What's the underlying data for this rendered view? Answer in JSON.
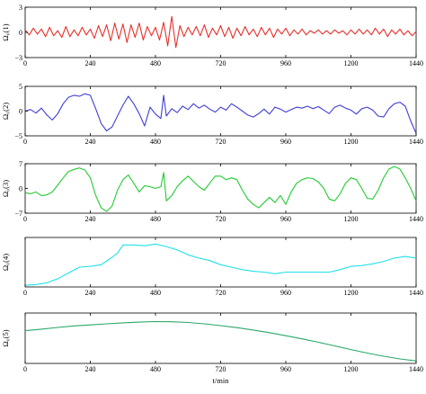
{
  "chart_data": [
    {
      "type": "line",
      "ylabel": "Ω₀(1)",
      "ylim": [
        -3,
        3
      ],
      "yticks": [
        "3",
        "0",
        "−3"
      ],
      "xlim": [
        0,
        1440
      ],
      "xticks": [
        "0",
        "240",
        "480",
        "720",
        "960",
        "1200",
        "1440"
      ],
      "color": "#e8302a",
      "x": [
        0,
        15,
        30,
        45,
        60,
        75,
        90,
        105,
        120,
        135,
        150,
        165,
        180,
        195,
        210,
        225,
        240,
        255,
        270,
        285,
        300,
        315,
        330,
        345,
        360,
        375,
        390,
        405,
        420,
        435,
        450,
        465,
        480,
        495,
        510,
        525,
        540,
        555,
        570,
        585,
        600,
        615,
        630,
        645,
        660,
        675,
        690,
        705,
        720,
        735,
        750,
        765,
        780,
        795,
        810,
        825,
        840,
        855,
        870,
        885,
        900,
        915,
        930,
        945,
        960,
        975,
        990,
        1005,
        1020,
        1035,
        1050,
        1065,
        1080,
        1095,
        1110,
        1125,
        1140,
        1155,
        1170,
        1185,
        1200,
        1215,
        1230,
        1245,
        1260,
        1275,
        1290,
        1305,
        1320,
        1335,
        1350,
        1365,
        1380,
        1395,
        1410,
        1425,
        1440
      ],
      "values": [
        0.3,
        -0.3,
        0.5,
        -0.2,
        0.4,
        -0.5,
        0.6,
        -0.4,
        0.2,
        -0.6,
        0.7,
        -0.5,
        0.3,
        -0.4,
        0.6,
        -0.3,
        0.4,
        -0.7,
        0.8,
        -0.5,
        0.9,
        -1.0,
        1.1,
        -0.8,
        1.0,
        -1.2,
        0.9,
        -0.6,
        1.1,
        -0.9,
        0.7,
        -0.4,
        0.6,
        -0.9,
        1.2,
        -1.6,
        1.9,
        -1.8,
        0.8,
        -0.5,
        0.6,
        -0.3,
        0.7,
        -0.4,
        0.9,
        -0.6,
        0.5,
        -0.3,
        0.8,
        -0.5,
        0.6,
        -0.7,
        0.5,
        -0.4,
        0.7,
        -0.3,
        0.4,
        -0.5,
        0.6,
        -0.3,
        0.5,
        -0.6,
        0.4,
        -0.2,
        0.5,
        -0.4,
        0.3,
        -0.2,
        0.4,
        -0.3,
        0.2,
        -0.1,
        0.3,
        -0.2,
        0.2,
        -0.2,
        0.3,
        -0.1,
        0.2,
        -0.3,
        0.3,
        -0.2,
        0.4,
        -0.2,
        0.3,
        -0.3,
        0.5,
        -0.2,
        0.4,
        -0.5,
        0.3,
        -0.2,
        0.4,
        -0.3,
        0.2,
        -0.4,
        0.1
      ]
    },
    {
      "type": "line",
      "ylabel": "Ω₀(2)",
      "ylim": [
        -5,
        5
      ],
      "yticks": [
        "5",
        "0",
        "−5"
      ],
      "xlim": [
        0,
        1440
      ],
      "xticks": [
        "0",
        "240",
        "480",
        "720",
        "960",
        "1200",
        "1440"
      ],
      "color": "#3f3fd6",
      "x": [
        0,
        20,
        40,
        60,
        80,
        100,
        120,
        140,
        160,
        180,
        200,
        220,
        240,
        260,
        280,
        300,
        320,
        340,
        360,
        380,
        400,
        420,
        440,
        460,
        480,
        500,
        510,
        520,
        540,
        560,
        580,
        600,
        620,
        640,
        660,
        680,
        700,
        720,
        740,
        760,
        780,
        800,
        820,
        840,
        860,
        880,
        900,
        920,
        940,
        960,
        980,
        1000,
        1020,
        1040,
        1060,
        1080,
        1100,
        1120,
        1140,
        1160,
        1180,
        1200,
        1220,
        1240,
        1260,
        1280,
        1300,
        1320,
        1340,
        1360,
        1380,
        1400,
        1420,
        1440
      ],
      "values": [
        0,
        0.3,
        -0.4,
        0.6,
        -0.8,
        -1.8,
        -0.5,
        1.5,
        2.8,
        3.2,
        3.0,
        3.5,
        3.2,
        0.5,
        -2.5,
        -4.0,
        -3.2,
        -1.0,
        1.2,
        3.0,
        1.5,
        -0.5,
        -3.0,
        0.8,
        -0.6,
        -1.5,
        3.2,
        -1.0,
        0.5,
        -0.3,
        1.0,
        0.3,
        1.5,
        0.6,
        1.2,
        0.4,
        -0.2,
        0.8,
        0.2,
        1.5,
        0.8,
        0,
        -0.8,
        -1.2,
        -0.5,
        0.4,
        -0.6,
        0.8,
        0.4,
        -0.2,
        0.3,
        0.8,
        0.6,
        1.0,
        0.5,
        0.9,
        0.2,
        -0.5,
        0.8,
        1.2,
        0.6,
        0.2,
        -0.6,
        0.5,
        0.8,
        0.2,
        -1.0,
        -1.2,
        0.5,
        1.5,
        1.8,
        1.0,
        -2.0,
        -4.5
      ]
    },
    {
      "type": "line",
      "ylabel": "Ω₀(3)",
      "ylim": [
        -7,
        7
      ],
      "yticks": [
        "7",
        "0",
        "−7"
      ],
      "xlim": [
        0,
        1440
      ],
      "xticks": [
        "0",
        "240",
        "480",
        "720",
        "960",
        "1200",
        "1440"
      ],
      "color": "#22cc33",
      "x": [
        0,
        20,
        40,
        60,
        80,
        100,
        120,
        140,
        160,
        180,
        200,
        220,
        240,
        260,
        280,
        300,
        320,
        340,
        360,
        380,
        400,
        420,
        440,
        460,
        480,
        500,
        510,
        520,
        540,
        560,
        580,
        600,
        620,
        640,
        660,
        680,
        700,
        720,
        740,
        760,
        780,
        800,
        820,
        840,
        860,
        880,
        900,
        920,
        940,
        960,
        980,
        1000,
        1020,
        1040,
        1060,
        1080,
        1100,
        1120,
        1140,
        1160,
        1180,
        1200,
        1220,
        1240,
        1260,
        1280,
        1300,
        1320,
        1340,
        1360,
        1380,
        1400,
        1420,
        1440
      ],
      "values": [
        -1.2,
        -1.5,
        -1.0,
        -2.0,
        -1.8,
        -1.0,
        1.0,
        3.0,
        4.8,
        5.4,
        5.8,
        5.2,
        3.0,
        -2.0,
        -5.5,
        -6.5,
        -5.0,
        -0.5,
        2.5,
        3.8,
        1.5,
        -1.0,
        0.8,
        0.5,
        0,
        0.5,
        4.5,
        -3.5,
        -2.0,
        0.5,
        2.2,
        3.5,
        2.0,
        0.5,
        -0.5,
        1.5,
        3.5,
        3.5,
        2.5,
        3.0,
        2.5,
        -0.5,
        -3.0,
        -4.5,
        -5.5,
        -4.0,
        -2.5,
        -4.0,
        -2.0,
        -4.5,
        -1.0,
        1.5,
        2.5,
        3.0,
        2.8,
        1.8,
        0,
        -3.0,
        -3.5,
        -1.5,
        1.5,
        3.0,
        2.5,
        0,
        -2.8,
        -3.0,
        -0.5,
        3.0,
        5.5,
        6.2,
        5.5,
        3.0,
        0,
        -3.5
      ]
    },
    {
      "type": "line",
      "ylabel": "Ω₀(4)",
      "ylim": [
        -30,
        30
      ],
      "yticks": [],
      "xlim": [
        0,
        1440
      ],
      "xticks": [
        "0",
        "240",
        "480",
        "720",
        "960",
        "1200",
        "1440"
      ],
      "color": "#22e0ea",
      "x": [
        0,
        40,
        80,
        120,
        160,
        200,
        240,
        280,
        320,
        340,
        360,
        400,
        440,
        480,
        520,
        560,
        600,
        640,
        680,
        720,
        760,
        800,
        840,
        880,
        920,
        960,
        1000,
        1040,
        1080,
        1120,
        1160,
        1200,
        1240,
        1280,
        1320,
        1360,
        1400,
        1440
      ],
      "values": [
        -28,
        -27,
        -25,
        -20,
        -13,
        -6,
        -5,
        -3,
        6,
        11,
        21,
        21,
        20,
        22,
        19,
        15,
        9,
        5,
        2,
        -3,
        -6,
        -9,
        -11,
        -12,
        -14,
        -12,
        -12,
        -12,
        -12,
        -12,
        -9,
        -5,
        -4,
        -2,
        1,
        5,
        7,
        5
      ]
    },
    {
      "type": "line",
      "ylabel": "Ω₀(5)",
      "ylim": [
        0,
        40
      ],
      "yticks": [],
      "xlim": [
        0,
        1440
      ],
      "xticks": [
        "0",
        "240",
        "480",
        "720",
        "960",
        "1200",
        "1440"
      ],
      "xlabel": "t/min",
      "color": "#2aa868",
      "x": [
        0,
        60,
        120,
        180,
        240,
        300,
        360,
        420,
        480,
        540,
        600,
        660,
        720,
        780,
        840,
        900,
        960,
        1020,
        1080,
        1140,
        1200,
        1260,
        1320,
        1380,
        1440
      ],
      "values": [
        26,
        27.2,
        28.6,
        29.8,
        30.6,
        31.4,
        32.2,
        32.8,
        33.2,
        33.1,
        32.5,
        31.4,
        30.0,
        28.4,
        26.5,
        24.4,
        22.0,
        19.5,
        16.8,
        13.9,
        11.0,
        8.2,
        5.7,
        3.6,
        2.0
      ]
    }
  ]
}
